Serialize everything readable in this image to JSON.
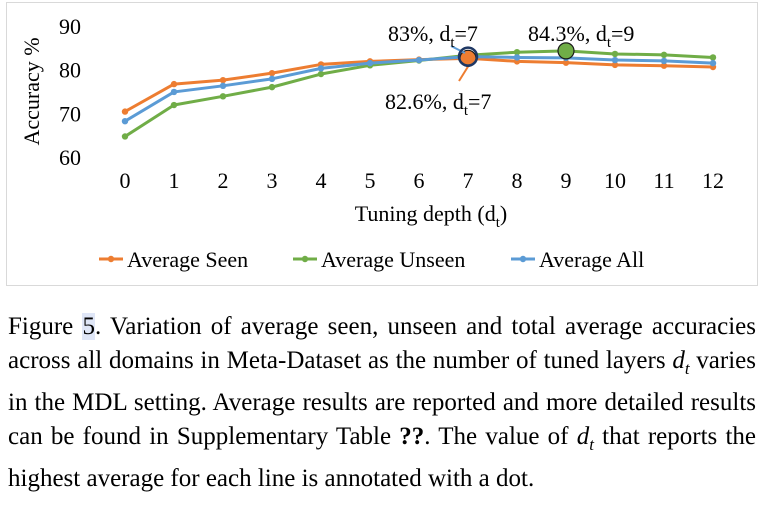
{
  "chart_data": {
    "type": "line",
    "title": "",
    "xlabel": "Tuning depth (d",
    "xlabel_sub": "t",
    "xlabel_close": ")",
    "ylabel": "Accuracy %",
    "x": [
      0,
      1,
      2,
      3,
      4,
      5,
      6,
      7,
      8,
      9,
      10,
      11,
      12
    ],
    "ylim": [
      60,
      90
    ],
    "yticks": [
      60,
      70,
      80,
      90
    ],
    "grid": false,
    "legend": "bottom",
    "series": [
      {
        "name": "Average Seen",
        "color": "#ED7D31",
        "values": [
          70.4,
          76.7,
          77.6,
          79.2,
          81.2,
          81.9,
          82.3,
          82.6,
          81.9,
          81.6,
          81.1,
          80.9,
          80.6
        ]
      },
      {
        "name": "Average Unseen",
        "color": "#70AD47",
        "values": [
          64.7,
          71.9,
          73.9,
          76.0,
          79.0,
          81.0,
          82.1,
          83.3,
          84.0,
          84.3,
          83.6,
          83.4,
          82.8
        ]
      },
      {
        "name": "Average All",
        "color": "#5B9BD5",
        "values": [
          68.2,
          74.9,
          76.3,
          77.9,
          80.3,
          81.5,
          82.2,
          83.0,
          82.8,
          82.7,
          82.2,
          82.0,
          81.5
        ]
      }
    ],
    "annotations": [
      {
        "series": "Average Seen",
        "x": 7,
        "y": 82.6,
        "text": "82.6%, d",
        "sub": "t",
        "tail": "=7"
      },
      {
        "series": "Average All",
        "x": 7,
        "y": 83.0,
        "text": "83%, d",
        "sub": "t",
        "tail": "=7"
      },
      {
        "series": "Average Unseen",
        "x": 9,
        "y": 84.3,
        "text": "84.3%, d",
        "sub": "t",
        "tail": "=9"
      }
    ]
  },
  "caption": {
    "figure_label": "Figure ",
    "figure_number": "5",
    "part1": ". Variation of average seen, unseen and total average accuracies across all domains in Meta-Dataset as the number of tuned layers ",
    "var1": "d",
    "var1_sub": "t",
    "part2": " varies in the MDL setting. Average results are reported and more detailed results can be found in Supplementary Table ",
    "ref": "??",
    "part3": ". The value of ",
    "var2": "d",
    "var2_sub": "t",
    "part4": " that reports the highest average for each line is annotated with a dot."
  }
}
